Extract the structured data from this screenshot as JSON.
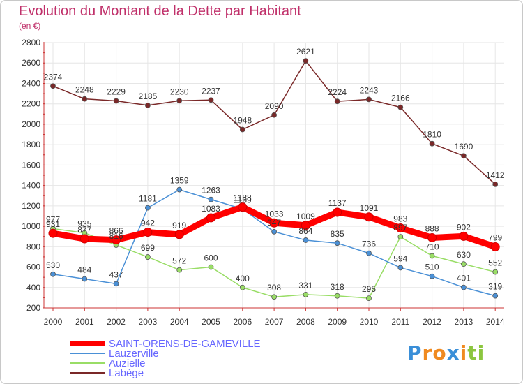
{
  "header": {
    "title": "Evolution du Montant de la Dette par Habitant",
    "subtitle": "(en €)"
  },
  "logo": {
    "text": "Proxiti",
    "letters": [
      "P",
      "r",
      "o",
      "x",
      "i",
      "t",
      "i"
    ],
    "colors": [
      "#3a8fd8",
      "#f08a20",
      "#f08a20",
      "#3a8fd8",
      "#f08a20",
      "#8cc63f",
      "#8cc63f"
    ]
  },
  "chart_data": {
    "type": "line",
    "title": "Evolution du Montant de la Dette par Habitant",
    "subtitle": "(en €)",
    "xlabel": "",
    "ylabel": "",
    "categories": [
      "2000",
      "2001",
      "2002",
      "2003",
      "2004",
      "2005",
      "2006",
      "2007",
      "2008",
      "2009",
      "2010",
      "2011",
      "2012",
      "2013",
      "2014"
    ],
    "ylim": [
      200,
      2800
    ],
    "yticks": [
      200,
      400,
      600,
      800,
      1000,
      1200,
      1400,
      1600,
      1800,
      2000,
      2200,
      2400,
      2600,
      2800
    ],
    "grid": true,
    "legend_position": "bottom-left",
    "series": [
      {
        "name": "SAINT-ORENS-DE-GAMEVILLE",
        "color": "#ff0000",
        "values": [
          931,
          877,
          866,
          942,
          919,
          1083,
          1188,
          1033,
          1009,
          1137,
          1091,
          983,
          888,
          902,
          799
        ]
      },
      {
        "name": "Lauzerville",
        "color": "#4a90d6",
        "values": [
          530,
          484,
          437,
          1181,
          1359,
          1263,
          1169,
          947,
          864,
          835,
          736,
          594,
          510,
          401,
          319
        ]
      },
      {
        "name": "Auzielle",
        "color": "#99dd66",
        "values": [
          977,
          935,
          816,
          699,
          572,
          600,
          400,
          308,
          331,
          318,
          295,
          897,
          710,
          630,
          552
        ]
      },
      {
        "name": "Labège",
        "color": "#7a2828",
        "values": [
          2374,
          2248,
          2229,
          2185,
          2230,
          2237,
          1948,
          2090,
          2621,
          2224,
          2243,
          2166,
          1810,
          1690,
          1412
        ]
      }
    ]
  }
}
